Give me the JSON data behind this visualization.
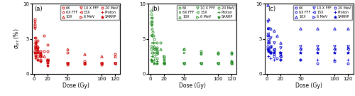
{
  "panels": [
    "(a)",
    "(b)",
    "(c)"
  ],
  "colors": [
    "#cc0000",
    "#228B22",
    "#0000cc"
  ],
  "ylabel": "$\\sigma_{tot}$ (%)",
  "xlabel": "Dose (Gy)",
  "ylim": [
    0,
    10
  ],
  "xlim": [
    -3,
    128
  ],
  "xticks": [
    0,
    20,
    50,
    100,
    120
  ],
  "yticks": [
    0,
    5,
    10
  ],
  "legend_order": [
    [
      "6X",
      "6X FFF",
      "10X"
    ],
    [
      "10 X FFF",
      "15X",
      "6 MeV"
    ],
    [
      "20 MeV",
      "Proton",
      "SARRP"
    ]
  ],
  "data_a": {
    "6X": [
      [
        1,
        7.8
      ],
      [
        1,
        7.5
      ],
      [
        1,
        6.8
      ],
      [
        2,
        5.2
      ],
      [
        2,
        4.8
      ],
      [
        2,
        4.2
      ],
      [
        3,
        4.5
      ],
      [
        3,
        3.8
      ],
      [
        4,
        3.5
      ],
      [
        5,
        4.8
      ],
      [
        5,
        3.8
      ],
      [
        5,
        3.2
      ],
      [
        10,
        3.2
      ],
      [
        10,
        2.8
      ],
      [
        10,
        2.5
      ],
      [
        15,
        5.5
      ],
      [
        15,
        3.2
      ],
      [
        20,
        4.2
      ],
      [
        20,
        3.2
      ],
      [
        50,
        3.0
      ],
      [
        50,
        1.5
      ],
      [
        50,
        1.3
      ],
      [
        75,
        1.8
      ],
      [
        75,
        1.4
      ],
      [
        100,
        1.5
      ],
      [
        100,
        1.3
      ],
      [
        120,
        2.8
      ],
      [
        120,
        1.5
      ]
    ],
    "6X FFF": [
      [
        1,
        5.2
      ],
      [
        2,
        4.5
      ],
      [
        5,
        3.5
      ],
      [
        10,
        2.8
      ],
      [
        20,
        1.8
      ],
      [
        50,
        1.5
      ],
      [
        75,
        1.5
      ],
      [
        100,
        1.5
      ],
      [
        120,
        1.5
      ]
    ],
    "10X": [
      [
        1,
        7.2
      ],
      [
        2,
        4.2
      ],
      [
        5,
        4.0
      ],
      [
        10,
        3.0
      ],
      [
        15,
        2.5
      ],
      [
        20,
        2.0
      ],
      [
        50,
        3.5
      ],
      [
        75,
        2.8
      ],
      [
        100,
        2.5
      ],
      [
        120,
        2.5
      ]
    ],
    "10 X FFF": [
      [
        1,
        6.5
      ],
      [
        2,
        3.8
      ],
      [
        5,
        3.2
      ],
      [
        10,
        2.5
      ],
      [
        20,
        1.5
      ],
      [
        50,
        1.5
      ],
      [
        75,
        1.5
      ],
      [
        100,
        1.5
      ],
      [
        120,
        1.5
      ]
    ],
    "15X": [
      [
        1,
        4.5
      ],
      [
        2,
        3.5
      ],
      [
        5,
        3.0
      ],
      [
        10,
        2.5
      ],
      [
        20,
        2.0
      ],
      [
        50,
        1.5
      ],
      [
        75,
        1.5
      ],
      [
        100,
        1.5
      ],
      [
        120,
        1.5
      ]
    ],
    "6 MeV": [
      [
        2,
        3.8
      ],
      [
        5,
        3.0
      ],
      [
        10,
        2.5
      ],
      [
        20,
        2.0
      ]
    ],
    "20 MeV": [
      [
        1,
        3.2
      ],
      [
        2,
        2.8
      ],
      [
        5,
        2.5
      ],
      [
        10,
        2.0
      ],
      [
        20,
        1.8
      ]
    ],
    "Proton": [
      [
        2,
        2.2
      ],
      [
        5,
        2.0
      ],
      [
        10,
        1.8
      ],
      [
        20,
        1.5
      ]
    ],
    "SARRP": [
      [
        1,
        3.0
      ],
      [
        2,
        2.5
      ],
      [
        5,
        2.0
      ],
      [
        10,
        1.8
      ],
      [
        20,
        1.2
      ]
    ]
  },
  "data_b": {
    "6X": [
      [
        1,
        9.0
      ],
      [
        1,
        8.5
      ],
      [
        2,
        8.0
      ],
      [
        2,
        7.5
      ],
      [
        3,
        6.0
      ],
      [
        4,
        5.5
      ],
      [
        5,
        5.0
      ],
      [
        10,
        4.5
      ],
      [
        10,
        3.8
      ],
      [
        15,
        4.5
      ],
      [
        20,
        2.0
      ],
      [
        50,
        3.5
      ],
      [
        50,
        1.5
      ],
      [
        75,
        3.2
      ],
      [
        75,
        1.5
      ],
      [
        100,
        3.0
      ],
      [
        100,
        1.5
      ],
      [
        120,
        3.0
      ],
      [
        120,
        1.5
      ]
    ],
    "6X FFF": [
      [
        1,
        8.0
      ],
      [
        2,
        7.0
      ],
      [
        5,
        4.5
      ],
      [
        10,
        3.5
      ],
      [
        20,
        2.5
      ],
      [
        50,
        3.0
      ],
      [
        75,
        2.8
      ],
      [
        100,
        2.8
      ],
      [
        120,
        2.8
      ]
    ],
    "10X": [
      [
        1,
        7.5
      ],
      [
        2,
        6.5
      ],
      [
        5,
        4.0
      ],
      [
        10,
        3.5
      ],
      [
        15,
        3.5
      ],
      [
        20,
        1.8
      ],
      [
        50,
        3.5
      ],
      [
        75,
        3.0
      ],
      [
        100,
        3.0
      ],
      [
        120,
        3.0
      ]
    ],
    "10 X FFF": [
      [
        1,
        7.0
      ],
      [
        2,
        5.5
      ],
      [
        5,
        3.5
      ],
      [
        10,
        3.0
      ],
      [
        20,
        2.2
      ],
      [
        50,
        1.5
      ],
      [
        75,
        1.5
      ],
      [
        100,
        1.5
      ],
      [
        120,
        1.5
      ]
    ],
    "15X": [
      [
        1,
        5.5
      ],
      [
        2,
        4.5
      ],
      [
        5,
        3.5
      ],
      [
        10,
        3.0
      ],
      [
        20,
        1.5
      ],
      [
        50,
        1.5
      ],
      [
        75,
        1.5
      ],
      [
        100,
        1.5
      ],
      [
        120,
        1.5
      ]
    ],
    "6 MeV": [
      [
        2,
        4.0
      ],
      [
        5,
        3.0
      ],
      [
        10,
        2.8
      ],
      [
        20,
        2.5
      ]
    ],
    "20 MeV": [
      [
        1,
        3.5
      ],
      [
        2,
        3.0
      ],
      [
        5,
        2.5
      ],
      [
        10,
        2.2
      ],
      [
        20,
        1.5
      ]
    ],
    "Proton": [
      [
        2,
        2.5
      ],
      [
        5,
        2.0
      ],
      [
        10,
        1.8
      ],
      [
        20,
        1.5
      ]
    ],
    "SARRP": [
      [
        1,
        2.0
      ],
      [
        2,
        1.8
      ],
      [
        5,
        1.5
      ],
      [
        10,
        1.5
      ],
      [
        20,
        1.5
      ],
      [
        120,
        1.8
      ]
    ]
  },
  "data_c": {
    "6X": [
      [
        1,
        5.5
      ],
      [
        2,
        5.0
      ],
      [
        3,
        4.5
      ],
      [
        4,
        3.2
      ],
      [
        5,
        3.0
      ],
      [
        10,
        2.5
      ],
      [
        15,
        2.2
      ],
      [
        20,
        2.0
      ],
      [
        50,
        2.0
      ],
      [
        75,
        1.5
      ],
      [
        100,
        1.8
      ],
      [
        120,
        1.5
      ]
    ],
    "6X FFF": [
      [
        1,
        6.5
      ],
      [
        2,
        5.5
      ],
      [
        5,
        4.0
      ],
      [
        10,
        3.5
      ],
      [
        20,
        2.8
      ],
      [
        50,
        3.5
      ],
      [
        75,
        3.5
      ],
      [
        100,
        3.5
      ],
      [
        120,
        3.8
      ]
    ],
    "10X": [
      [
        1,
        9.8
      ],
      [
        2,
        7.8
      ],
      [
        5,
        6.5
      ],
      [
        10,
        6.2
      ],
      [
        15,
        5.5
      ],
      [
        20,
        4.5
      ],
      [
        50,
        6.5
      ],
      [
        75,
        6.5
      ],
      [
        100,
        6.5
      ],
      [
        120,
        6.5
      ]
    ],
    "10 X FFF": [
      [
        1,
        7.5
      ],
      [
        2,
        6.5
      ],
      [
        5,
        5.2
      ],
      [
        10,
        4.5
      ],
      [
        20,
        3.8
      ],
      [
        50,
        4.0
      ],
      [
        75,
        4.0
      ],
      [
        100,
        4.0
      ],
      [
        120,
        4.0
      ]
    ],
    "15X": [
      [
        1,
        5.8
      ],
      [
        2,
        4.8
      ],
      [
        5,
        4.0
      ],
      [
        10,
        3.5
      ],
      [
        20,
        2.5
      ],
      [
        50,
        3.5
      ],
      [
        75,
        3.5
      ],
      [
        100,
        3.5
      ],
      [
        120,
        3.5
      ]
    ],
    "6 MeV": [
      [
        2,
        4.5
      ],
      [
        5,
        3.8
      ],
      [
        10,
        3.2
      ],
      [
        20,
        3.0
      ]
    ],
    "20 MeV": [
      [
        1,
        4.0
      ],
      [
        2,
        3.5
      ],
      [
        5,
        3.0
      ],
      [
        10,
        2.8
      ],
      [
        20,
        2.5
      ]
    ],
    "Proton": [
      [
        2,
        2.5
      ],
      [
        5,
        2.2
      ],
      [
        10,
        2.0
      ],
      [
        20,
        2.0
      ],
      [
        50,
        2.0
      ],
      [
        75,
        2.0
      ],
      [
        100,
        2.0
      ],
      [
        120,
        2.0
      ]
    ],
    "SARRP": [
      [
        1,
        3.5
      ],
      [
        2,
        3.2
      ],
      [
        5,
        3.0
      ],
      [
        10,
        3.0
      ],
      [
        20,
        3.0
      ],
      [
        50,
        3.0
      ],
      [
        75,
        3.0
      ],
      [
        100,
        3.0
      ],
      [
        120,
        3.0
      ]
    ]
  },
  "marker_map": {
    "6X": "o",
    "6X FFF": "s",
    "10X": "^",
    "10 X FFF": "v",
    "15X": "<",
    "6 MeV": ">",
    "20 MeV": "o",
    "Proton": "+",
    "SARRP": "*"
  },
  "ms_map": {
    "6X": 2.2,
    "6X FFF": 2.0,
    "10X": 2.5,
    "10 X FFF": 2.5,
    "15X": 2.5,
    "6 MeV": 2.5,
    "20 MeV": 2.2,
    "Proton": 3.0,
    "SARRP": 3.0
  },
  "open_markers": [
    "o",
    "s",
    "^",
    "v",
    "<",
    ">"
  ]
}
